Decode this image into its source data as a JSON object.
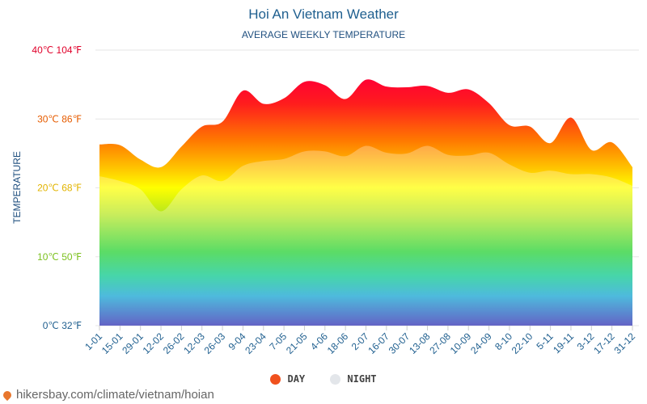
{
  "chart_data": {
    "type": "area",
    "title": "Hoi An Vietnam Weather",
    "subtitle": "AVERAGE WEEKLY TEMPERATURE",
    "ylabel": "TEMPERATURE",
    "ylim": [
      0,
      40
    ],
    "yticks": [
      {
        "value": 0,
        "label": "0℃ 32℉",
        "color": "#1f5f8f"
      },
      {
        "value": 10,
        "label": "10℃ 50℉",
        "color": "#7cc11f"
      },
      {
        "value": 20,
        "label": "20℃ 68℉",
        "color": "#e2b400"
      },
      {
        "value": 30,
        "label": "30℃ 86℉",
        "color": "#e65c00"
      },
      {
        "value": 40,
        "label": "40℃ 104℉",
        "color": "#e0002a"
      }
    ],
    "categories": [
      "1-01",
      "15-01",
      "29-01",
      "12-02",
      "26-02",
      "12-03",
      "26-03",
      "9-04",
      "23-04",
      "7-05",
      "21-05",
      "4-06",
      "18-06",
      "2-07",
      "16-07",
      "30-07",
      "13-08",
      "27-08",
      "10-09",
      "24-09",
      "8-10",
      "22-10",
      "5-11",
      "19-11",
      "3-12",
      "17-12",
      "31-12"
    ],
    "series": [
      {
        "name": "DAY",
        "color": "#f0511e",
        "values": [
          26.3,
          26.2,
          24.1,
          23.0,
          26.0,
          28.9,
          29.6,
          34.1,
          32.2,
          33.0,
          35.4,
          34.9,
          32.9,
          35.7,
          34.7,
          34.6,
          34.8,
          33.8,
          34.3,
          32.3,
          29.1,
          28.9,
          26.5,
          30.2,
          25.5,
          26.6,
          23.0
        ]
      },
      {
        "name": "NIGHT",
        "color": "#e3e6ea",
        "values": [
          21.7,
          21.0,
          19.8,
          16.6,
          19.8,
          21.8,
          21.0,
          23.2,
          23.9,
          24.2,
          25.3,
          25.3,
          24.6,
          26.1,
          25.1,
          25.0,
          26.1,
          24.8,
          24.7,
          25.1,
          23.4,
          22.2,
          22.5,
          22.0,
          22.0,
          21.5,
          20.3
        ]
      }
    ],
    "legend_position": "bottom-center",
    "grid": true
  },
  "source_text": "hikersbay.com/climate/vietnam/hoian"
}
